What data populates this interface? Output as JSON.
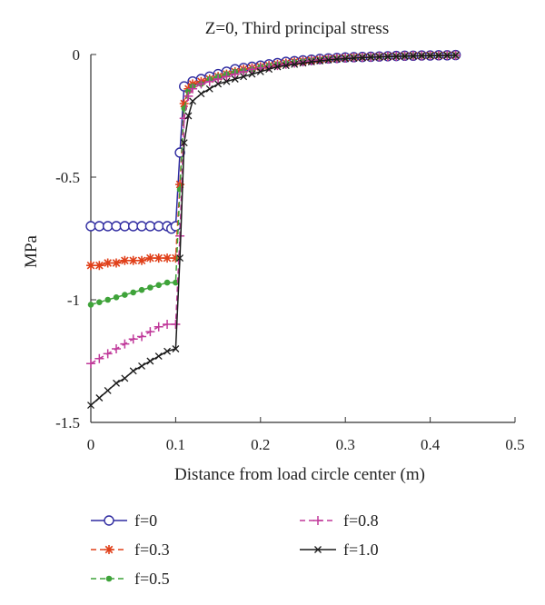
{
  "chart_data": {
    "type": "line",
    "title": "Z=0, Third principal stress",
    "xlabel": "Distance from load circle center (m)",
    "ylabel": "MPa",
    "xlim": [
      0,
      0.5
    ],
    "ylim": [
      -1.5,
      0
    ],
    "xticks": [
      "0",
      "0.1",
      "0.2",
      "0.3",
      "0.4",
      "0.5"
    ],
    "yticks": [
      "0",
      "-0.5",
      "-1",
      "-1.5"
    ],
    "grid": false,
    "legend_position": "bottom",
    "series": [
      {
        "name": "f=0",
        "color": "#2e2aa0",
        "marker": "circle",
        "dash": "solid",
        "x": [
          0,
          0.01,
          0.02,
          0.03,
          0.04,
          0.05,
          0.06,
          0.07,
          0.08,
          0.09,
          0.095,
          0.1,
          0.105,
          0.11,
          0.12,
          0.13,
          0.14,
          0.15,
          0.16,
          0.17,
          0.18,
          0.19,
          0.2,
          0.21,
          0.22,
          0.23,
          0.24,
          0.25,
          0.26,
          0.27,
          0.28,
          0.29,
          0.3,
          0.31,
          0.32,
          0.33,
          0.34,
          0.35,
          0.36,
          0.37,
          0.38,
          0.39,
          0.4,
          0.41,
          0.42,
          0.43
        ],
        "y": [
          -0.7,
          -0.7,
          -0.7,
          -0.7,
          -0.7,
          -0.7,
          -0.7,
          -0.7,
          -0.7,
          -0.7,
          -0.71,
          -0.7,
          -0.4,
          -0.13,
          -0.11,
          -0.1,
          -0.09,
          -0.08,
          -0.07,
          -0.06,
          -0.055,
          -0.05,
          -0.045,
          -0.04,
          -0.035,
          -0.03,
          -0.027,
          -0.024,
          -0.021,
          -0.018,
          -0.016,
          -0.014,
          -0.012,
          -0.011,
          -0.01,
          -0.009,
          -0.008,
          -0.007,
          -0.006,
          -0.005,
          -0.005,
          -0.004,
          -0.004,
          -0.003,
          -0.003,
          -0.002
        ]
      },
      {
        "name": "f=0.3",
        "color": "#e0401a",
        "marker": "star",
        "dash": "dashed",
        "x": [
          0,
          0.01,
          0.02,
          0.03,
          0.04,
          0.05,
          0.06,
          0.07,
          0.08,
          0.09,
          0.1,
          0.105,
          0.11,
          0.115,
          0.12,
          0.13,
          0.14,
          0.15,
          0.16,
          0.17,
          0.18,
          0.19,
          0.2,
          0.21,
          0.22,
          0.23,
          0.24,
          0.25,
          0.26,
          0.27,
          0.28,
          0.29,
          0.3,
          0.31,
          0.32,
          0.33,
          0.34,
          0.35,
          0.36,
          0.37,
          0.38,
          0.39,
          0.4,
          0.41,
          0.42,
          0.43
        ],
        "y": [
          -0.86,
          -0.86,
          -0.85,
          -0.85,
          -0.84,
          -0.84,
          -0.84,
          -0.83,
          -0.83,
          -0.83,
          -0.83,
          -0.53,
          -0.2,
          -0.14,
          -0.12,
          -0.11,
          -0.1,
          -0.09,
          -0.08,
          -0.07,
          -0.06,
          -0.055,
          -0.05,
          -0.045,
          -0.04,
          -0.035,
          -0.03,
          -0.027,
          -0.024,
          -0.021,
          -0.018,
          -0.016,
          -0.014,
          -0.012,
          -0.011,
          -0.01,
          -0.009,
          -0.008,
          -0.007,
          -0.006,
          -0.005,
          -0.005,
          -0.004,
          -0.004,
          -0.003,
          -0.003
        ]
      },
      {
        "name": "f=0.5",
        "color": "#3fa33a",
        "marker": "dot",
        "dash": "dashed",
        "x": [
          0,
          0.01,
          0.02,
          0.03,
          0.04,
          0.05,
          0.06,
          0.07,
          0.08,
          0.09,
          0.1,
          0.105,
          0.11,
          0.115,
          0.12,
          0.13,
          0.14,
          0.15,
          0.16,
          0.17,
          0.18,
          0.19,
          0.2,
          0.21,
          0.22,
          0.23,
          0.24,
          0.25,
          0.26,
          0.27,
          0.28,
          0.29,
          0.3,
          0.31,
          0.32,
          0.33,
          0.34,
          0.35,
          0.36,
          0.37,
          0.38,
          0.39,
          0.4,
          0.41,
          0.42,
          0.43
        ],
        "y": [
          -1.02,
          -1.01,
          -1.0,
          -0.99,
          -0.98,
          -0.97,
          -0.96,
          -0.95,
          -0.94,
          -0.93,
          -0.93,
          -0.55,
          -0.22,
          -0.15,
          -0.13,
          -0.12,
          -0.1,
          -0.09,
          -0.08,
          -0.07,
          -0.065,
          -0.06,
          -0.05,
          -0.045,
          -0.04,
          -0.035,
          -0.03,
          -0.027,
          -0.024,
          -0.021,
          -0.018,
          -0.016,
          -0.014,
          -0.012,
          -0.011,
          -0.01,
          -0.009,
          -0.008,
          -0.007,
          -0.006,
          -0.005,
          -0.005,
          -0.004,
          -0.004,
          -0.003,
          -0.003
        ]
      },
      {
        "name": "f=0.8",
        "color": "#c0399a",
        "marker": "plus",
        "dash": "dashed",
        "x": [
          0,
          0.01,
          0.02,
          0.03,
          0.04,
          0.05,
          0.06,
          0.07,
          0.08,
          0.09,
          0.1,
          0.105,
          0.11,
          0.115,
          0.12,
          0.13,
          0.14,
          0.15,
          0.16,
          0.17,
          0.18,
          0.19,
          0.2,
          0.21,
          0.22,
          0.23,
          0.24,
          0.25,
          0.26,
          0.27,
          0.28,
          0.29,
          0.3,
          0.31,
          0.32,
          0.33,
          0.34,
          0.35,
          0.36,
          0.37,
          0.38,
          0.39,
          0.4,
          0.41,
          0.42,
          0.43
        ],
        "y": [
          -1.26,
          -1.24,
          -1.22,
          -1.2,
          -1.18,
          -1.16,
          -1.15,
          -1.13,
          -1.11,
          -1.1,
          -1.1,
          -0.74,
          -0.26,
          -0.17,
          -0.14,
          -0.12,
          -0.11,
          -0.1,
          -0.09,
          -0.08,
          -0.07,
          -0.06,
          -0.055,
          -0.05,
          -0.045,
          -0.04,
          -0.035,
          -0.03,
          -0.026,
          -0.022,
          -0.019,
          -0.017,
          -0.015,
          -0.013,
          -0.011,
          -0.01,
          -0.009,
          -0.008,
          -0.007,
          -0.006,
          -0.005,
          -0.005,
          -0.004,
          -0.004,
          -0.003,
          -0.003
        ]
      },
      {
        "name": "f=1.0",
        "color": "#1a1a1a",
        "marker": "cross",
        "dash": "solid",
        "x": [
          0,
          0.01,
          0.02,
          0.03,
          0.04,
          0.05,
          0.06,
          0.07,
          0.08,
          0.09,
          0.1,
          0.105,
          0.11,
          0.115,
          0.12,
          0.13,
          0.14,
          0.15,
          0.16,
          0.17,
          0.18,
          0.19,
          0.2,
          0.21,
          0.22,
          0.23,
          0.24,
          0.25,
          0.26,
          0.27,
          0.28,
          0.29,
          0.3,
          0.31,
          0.32,
          0.33,
          0.34,
          0.35,
          0.36,
          0.37,
          0.38,
          0.39,
          0.4,
          0.41,
          0.42,
          0.43
        ],
        "y": [
          -1.43,
          -1.4,
          -1.37,
          -1.34,
          -1.32,
          -1.29,
          -1.27,
          -1.25,
          -1.23,
          -1.21,
          -1.2,
          -0.83,
          -0.36,
          -0.25,
          -0.19,
          -0.16,
          -0.14,
          -0.12,
          -0.11,
          -0.1,
          -0.09,
          -0.08,
          -0.07,
          -0.06,
          -0.05,
          -0.045,
          -0.04,
          -0.035,
          -0.03,
          -0.026,
          -0.022,
          -0.019,
          -0.017,
          -0.015,
          -0.013,
          -0.011,
          -0.01,
          -0.009,
          -0.008,
          -0.007,
          -0.006,
          -0.005,
          -0.005,
          -0.004,
          -0.004,
          -0.003
        ]
      }
    ]
  }
}
